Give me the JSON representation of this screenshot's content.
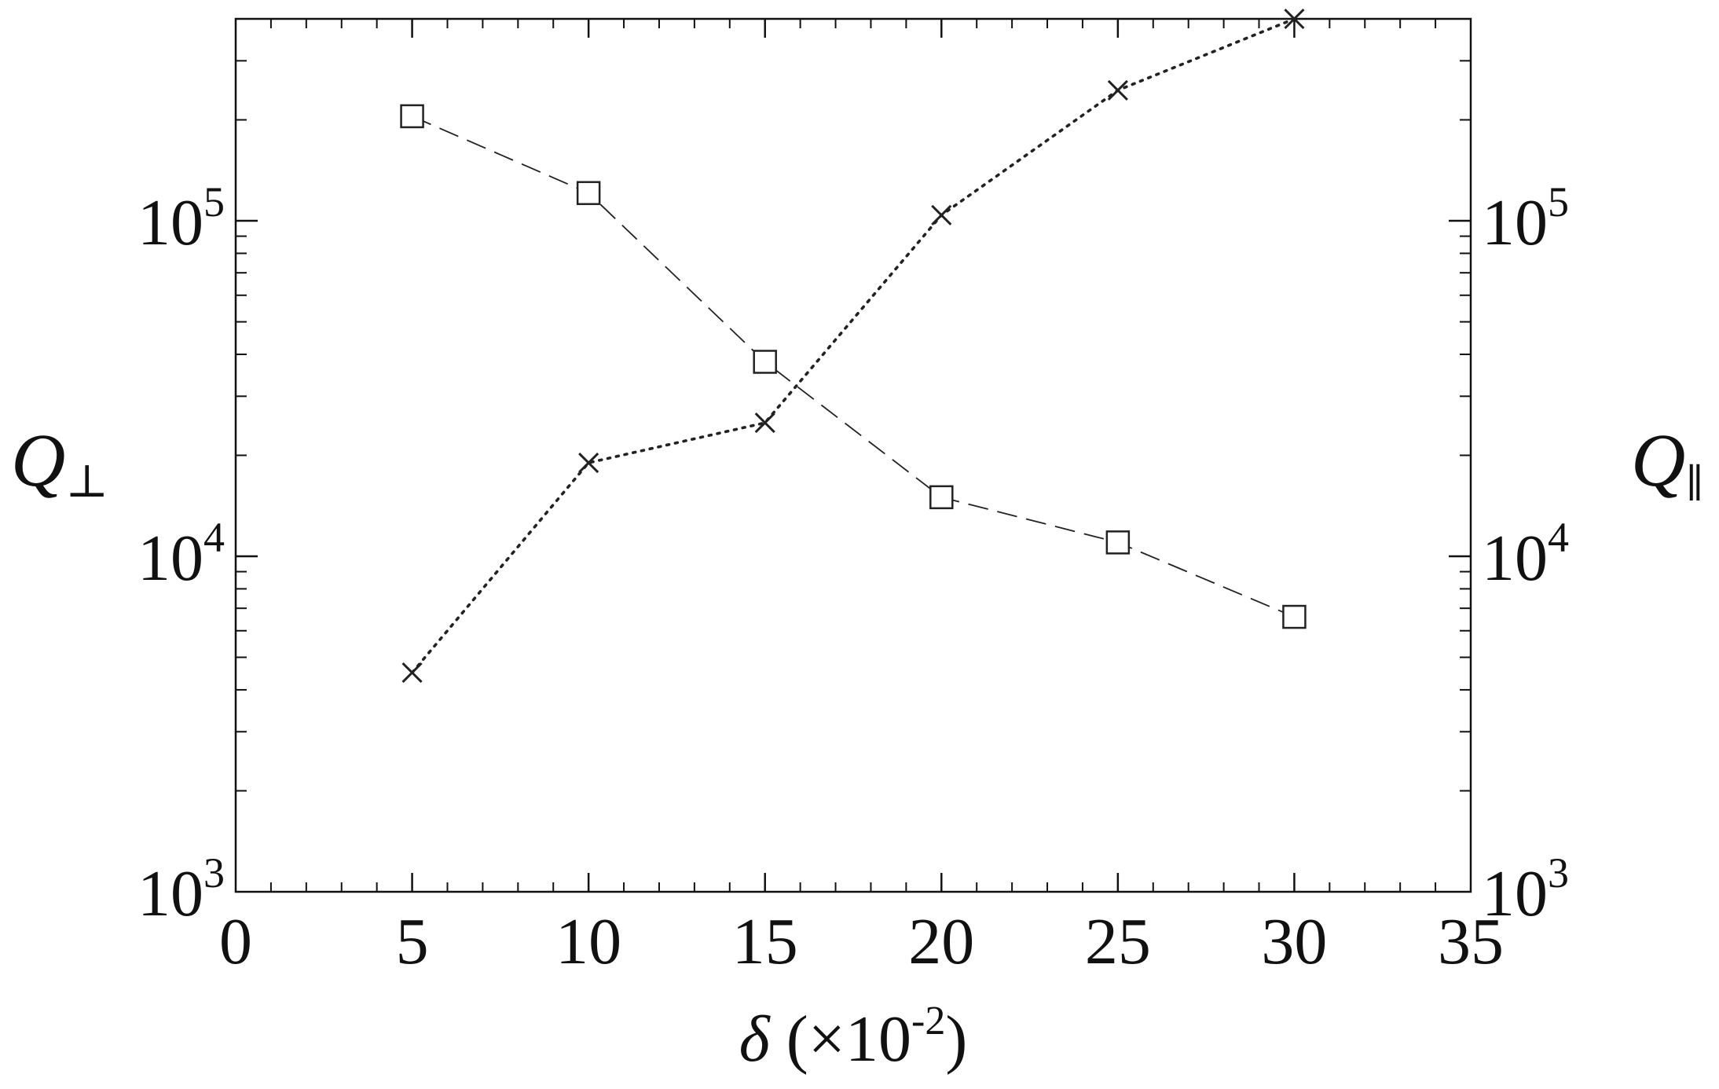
{
  "chart_data": {
    "type": "scatter",
    "xlabel": {
      "sym": "δ",
      "rest": " (×10",
      "exp": "-2",
      "close": ")"
    },
    "ylabel_left": {
      "base": "Q",
      "sub": "⊥"
    },
    "ylabel_right": {
      "base": "Q",
      "sub": "∥"
    },
    "xlim": [
      0,
      35
    ],
    "ylim": [
      1000,
      400000
    ],
    "yscale": "log",
    "grid": false,
    "x_ticks": [
      {
        "value": 0,
        "label": "0"
      },
      {
        "value": 5,
        "label": "5"
      },
      {
        "value": 10,
        "label": "10"
      },
      {
        "value": 15,
        "label": "15"
      },
      {
        "value": 20,
        "label": "20"
      },
      {
        "value": 25,
        "label": "25"
      },
      {
        "value": 30,
        "label": "30"
      },
      {
        "value": 35,
        "label": "35"
      }
    ],
    "y_ticks": [
      {
        "value": 1000,
        "base": "10",
        "exp": "3"
      },
      {
        "value": 10000,
        "base": "10",
        "exp": "4"
      },
      {
        "value": 100000,
        "base": "10",
        "exp": "5"
      }
    ],
    "series": [
      {
        "marker": "square",
        "line_style": "dashed",
        "axis": "left",
        "x": [
          5,
          10,
          15,
          20,
          25,
          30
        ],
        "y": [
          205000,
          121000,
          38000,
          15000,
          11000,
          6600
        ]
      },
      {
        "marker": "x",
        "line_style": "dotted",
        "axis": "right",
        "x": [
          5,
          10,
          15,
          20,
          25,
          30
        ],
        "y": [
          4500,
          19000,
          25000,
          104000,
          245000,
          400000
        ]
      }
    ],
    "colors": {
      "ink": "#222222",
      "frame": "#111111"
    }
  }
}
